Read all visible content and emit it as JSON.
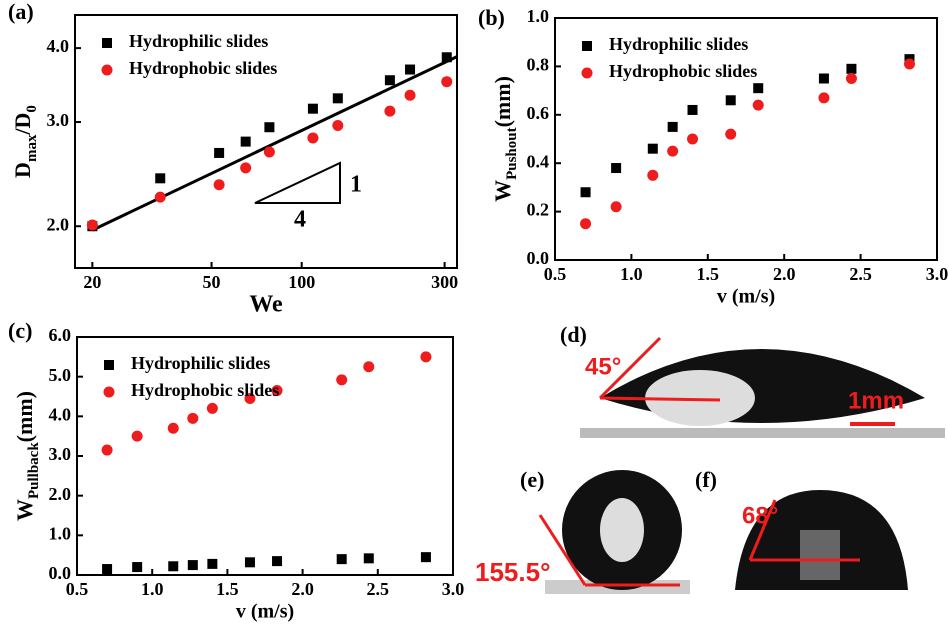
{
  "chart_data": [
    {
      "type": "scatter",
      "panel_label": "(a)",
      "x_label": "We",
      "y_label": [
        "D",
        "max",
        "/D",
        "0"
      ],
      "log_x": true,
      "log_y": true,
      "legend": "top-left",
      "xlim": [
        17.5,
        330
      ],
      "ylim": [
        1.7,
        4.55
      ],
      "xticks": [
        20,
        50,
        100,
        300
      ],
      "yticks": [
        {
          "value": 2,
          "label": "2.0"
        },
        {
          "value": 3,
          "label": "3.0"
        },
        {
          "value": 4,
          "label": "4.0"
        }
      ],
      "x": [
        20,
        33.7,
        53,
        65,
        78,
        109,
        132,
        197,
        230,
        305
      ],
      "series": [
        {
          "name": "Hydrophilic slides",
          "color": "#000000",
          "marker": "square",
          "values": [
            2.0,
            2.41,
            2.66,
            2.78,
            2.94,
            3.16,
            3.29,
            3.53,
            3.68,
            3.86
          ]
        },
        {
          "name": "Hydrophobic slides",
          "color": "#ee1c1c",
          "marker": "circle",
          "values": [
            2.01,
            2.24,
            2.35,
            2.51,
            2.67,
            2.82,
            2.96,
            3.13,
            3.33,
            3.51
          ]
        }
      ],
      "fit_line": {
        "x": [
          20,
          330
        ],
        "y": [
          1.97,
          3.87
        ]
      },
      "annotations": [
        "1",
        "4"
      ]
    },
    {
      "type": "scatter",
      "panel_label": "(b)",
      "x_label": "v (m/s)",
      "y_label": [
        "W",
        "Pushout",
        "(mm)"
      ],
      "legend": "top-left",
      "xlim": [
        0.5,
        3.0
      ],
      "ylim": [
        0,
        1.0
      ],
      "xticks": [
        0.5,
        {
          "value": 1,
          "label": "1.0"
        },
        1.5,
        {
          "value": 2,
          "label": "2.0"
        },
        2.5,
        {
          "value": 3,
          "label": "3.0"
        }
      ],
      "yticks": [
        {
          "value": 0,
          "label": "0.0"
        },
        0.2,
        0.4,
        0.6,
        0.8,
        {
          "value": 1,
          "label": "1.0"
        }
      ],
      "x": [
        0.7,
        0.9,
        1.14,
        1.27,
        1.4,
        1.65,
        1.83,
        2.26,
        2.44,
        2.82
      ],
      "series": [
        {
          "name": "Hydrophilic slides",
          "color": "#000000",
          "marker": "square",
          "values": [
            0.28,
            0.38,
            0.46,
            0.55,
            0.62,
            0.66,
            0.71,
            0.75,
            0.79,
            0.83
          ]
        },
        {
          "name": "Hydrophobic slides",
          "color": "#ee1c1c",
          "marker": "circle",
          "values": [
            0.15,
            0.22,
            0.35,
            0.45,
            0.5,
            0.52,
            0.64,
            0.67,
            0.75,
            0.81
          ]
        }
      ]
    },
    {
      "type": "scatter",
      "panel_label": "(c)",
      "x_label": "v (m/s)",
      "y_label": [
        "W",
        "Pullback",
        "(mm)"
      ],
      "legend": "top-left",
      "xlim": [
        0.5,
        3.0
      ],
      "ylim": [
        0,
        6.0
      ],
      "xticks": [
        0.5,
        {
          "value": 1,
          "label": "1.0"
        },
        1.5,
        {
          "value": 2,
          "label": "2.0"
        },
        2.5,
        {
          "value": 3,
          "label": "3.0"
        }
      ],
      "yticks": [
        {
          "value": 0,
          "label": "0.0"
        },
        {
          "value": 1,
          "label": "1.0"
        },
        {
          "value": 2,
          "label": "2.0"
        },
        {
          "value": 3,
          "label": "3.0"
        },
        {
          "value": 4,
          "label": "4.0"
        },
        {
          "value": 5,
          "label": "5.0"
        },
        {
          "value": 6,
          "label": "6.0"
        }
      ],
      "x": [
        0.7,
        0.9,
        1.14,
        1.27,
        1.4,
        1.65,
        1.83,
        2.26,
        2.44,
        2.82
      ],
      "series": [
        {
          "name": "Hydrophilic slides",
          "color": "#000000",
          "marker": "square",
          "values": [
            0.15,
            0.2,
            0.22,
            0.25,
            0.28,
            0.32,
            0.35,
            0.4,
            0.42,
            0.45
          ]
        },
        {
          "name": "Hydrophobic slides",
          "color": "#ee1c1c",
          "marker": "circle",
          "values": [
            3.15,
            3.5,
            3.7,
            3.95,
            4.2,
            4.45,
            4.65,
            4.92,
            5.25,
            5.5
          ]
        }
      ]
    }
  ],
  "photos": [
    {
      "label": "(d)",
      "angle": "45°",
      "scale": "1mm"
    },
    {
      "label": "(e)",
      "angle": "155.5°"
    },
    {
      "label": "(f)",
      "angle": "68°"
    }
  ]
}
